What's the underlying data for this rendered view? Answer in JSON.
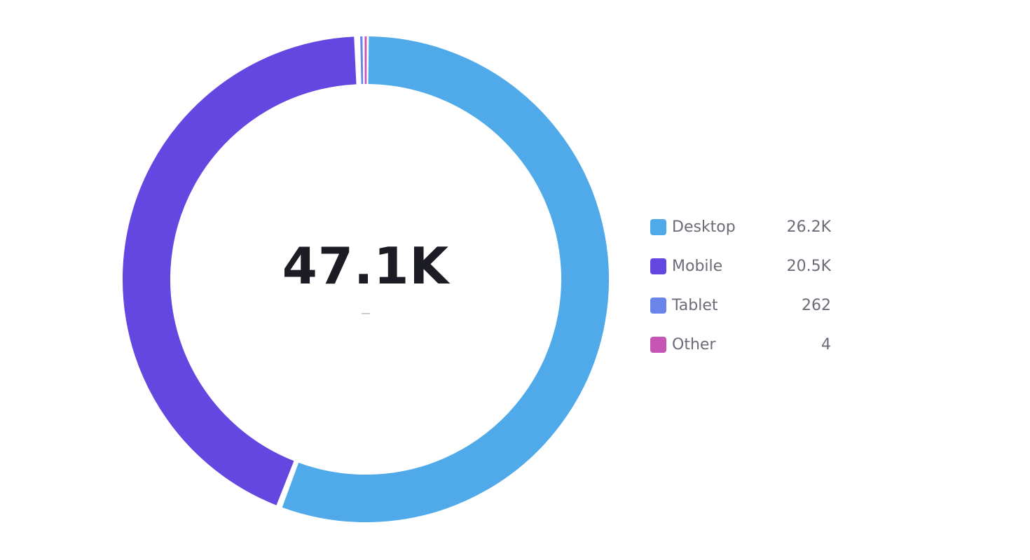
{
  "chart_data": {
    "type": "pie",
    "style": "donut",
    "categories": [
      "Desktop",
      "Mobile",
      "Tablet",
      "Other"
    ],
    "values": [
      26200,
      20500,
      262,
      4
    ],
    "value_labels": [
      "26.2K",
      "20.5K",
      "262",
      "4"
    ],
    "colors": [
      "#50aaea",
      "#6446e0",
      "#6a84ea",
      "#c655b4"
    ],
    "center_total": "47.1K",
    "center_subtitle": "—",
    "legend_position": "right"
  }
}
